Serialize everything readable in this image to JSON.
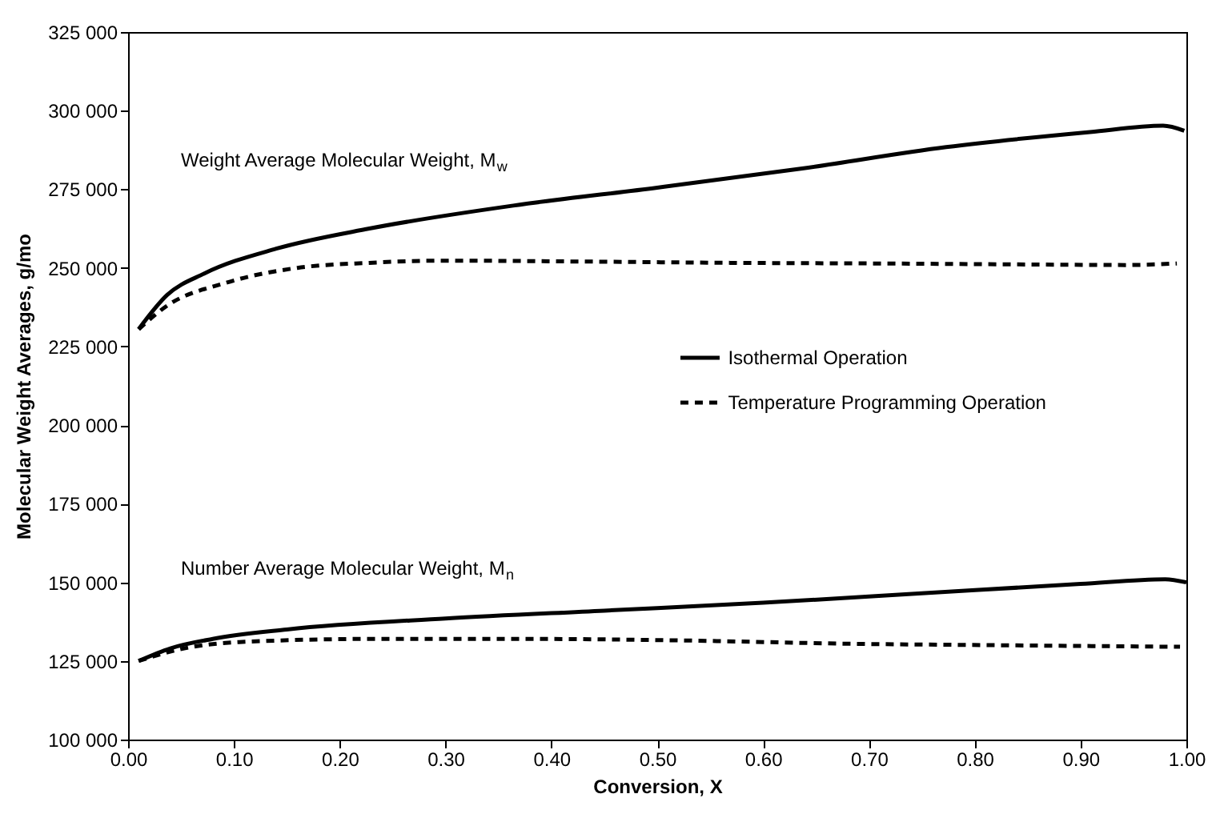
{
  "chart_data": {
    "type": "line",
    "xlabel": "Conversion, X",
    "ylabel": "Molecular Weight  Averages, g/mo",
    "xlim": [
      0,
      1
    ],
    "xticks": [
      {
        "value": 0,
        "label": "0.00"
      },
      {
        "value": 0.1,
        "label": "0.10"
      },
      {
        "value": 0.2,
        "label": "0.20"
      },
      {
        "value": 0.3,
        "label": "0.30"
      },
      {
        "value": 0.4,
        "label": "0.40"
      },
      {
        "value": 0.5,
        "label": "0.50"
      },
      {
        "value": 0.6,
        "label": "0.60"
      },
      {
        "value": 0.7,
        "label": "0.70"
      },
      {
        "value": 0.8,
        "label": "0.80"
      },
      {
        "value": 0.9,
        "label": "0.90"
      },
      {
        "value": 1,
        "label": "1.00"
      }
    ],
    "ylim": [
      100000,
      325000
    ],
    "yticks": [
      {
        "value": 100000,
        "label": "100 000"
      },
      {
        "value": 125000,
        "label": "125 000"
      },
      {
        "value": 150000,
        "label": "150 000"
      },
      {
        "value": 175000,
        "label": "175 000"
      },
      {
        "value": 200000,
        "label": "200 000"
      },
      {
        "value": 225000,
        "label": "225 000"
      },
      {
        "value": 250000,
        "label": "250 000"
      },
      {
        "value": 275000,
        "label": "275 000"
      },
      {
        "value": 300000,
        "label": "300 000"
      },
      {
        "value": 325000,
        "label": "325 000"
      }
    ],
    "grid": false,
    "legend": "right",
    "marker": "none",
    "series": [
      {
        "name": "Isothermal Operation",
        "color": "#000000",
        "line_style": "solid",
        "x": [
          0.01,
          0.037,
          0.072,
          0.14,
          0.228,
          0.364,
          0.5,
          0.637,
          0.773,
          0.909,
          0.978,
          0.998
        ],
        "values": [
          230500,
          241400,
          248200,
          256100,
          262500,
          269800,
          275500,
          281600,
          288400,
          293200,
          295200,
          293600
        ]
      },
      {
        "name": "Temperature Programming Operation",
        "color": "#000000",
        "line_style": "dashed",
        "x": [
          0.01,
          0.037,
          0.092,
          0.16,
          0.228,
          0.296,
          0.433,
          0.569,
          0.705,
          0.841,
          0.943,
          0.991
        ],
        "values": [
          230500,
          238000,
          245200,
          250000,
          251600,
          252300,
          252000,
          251600,
          251400,
          251100,
          250900,
          251400
        ]
      },
      {
        "color": "#000000",
        "line_style": "solid",
        "x": [
          0.01,
          0.04,
          0.08,
          0.15,
          0.3,
          0.45,
          0.6,
          0.75,
          0.9,
          0.98,
          1.0
        ],
        "values": [
          125000,
          129000,
          132000,
          135000,
          138500,
          141000,
          143500,
          146500,
          149500,
          151000,
          150000
        ]
      },
      {
        "color": "#000000",
        "line_style": "dashed",
        "x": [
          0.01,
          0.053,
          0.105,
          0.231,
          0.379,
          0.527,
          0.676,
          0.824,
          0.994
        ],
        "values": [
          125000,
          129000,
          131000,
          132000,
          132000,
          131500,
          130500,
          130000,
          129500
        ]
      }
    ],
    "annotations": [
      "Weight Average Molecular Weight, M$_{w}$",
      "Number Average Molecular Weight, M$_{n}$"
    ]
  }
}
